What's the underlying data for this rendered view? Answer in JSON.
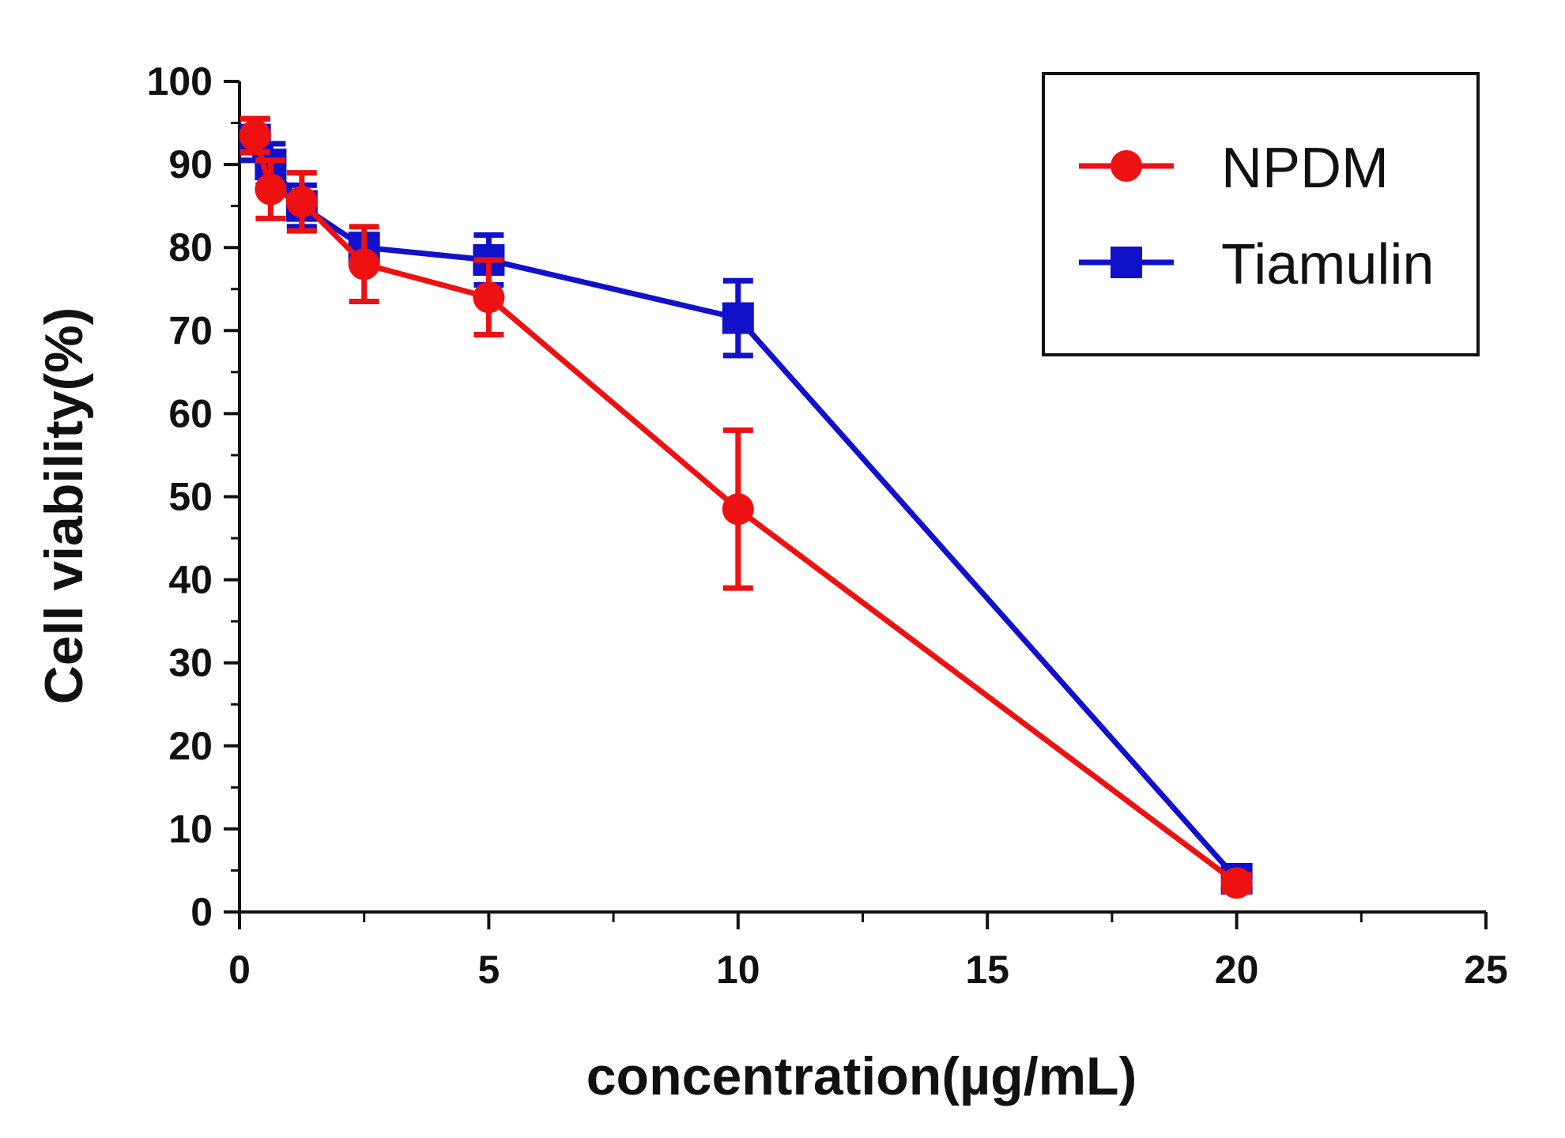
{
  "chart_data": {
    "type": "line",
    "title": "",
    "xlabel": "concentration(µg/mL)",
    "ylabel": "Cell viability(%)",
    "xlim": [
      0,
      25
    ],
    "ylim": [
      0,
      100
    ],
    "xticks": [
      0,
      5,
      10,
      15,
      20,
      25
    ],
    "xtick_labels": [
      "0",
      "5",
      "10",
      "15",
      "20",
      "25"
    ],
    "yticks": [
      0,
      10,
      20,
      30,
      40,
      50,
      60,
      70,
      80,
      90,
      100
    ],
    "ytick_labels": [
      "0",
      "10",
      "20",
      "30",
      "40",
      "50",
      "60",
      "70",
      "80",
      "90",
      "100"
    ],
    "grid": false,
    "legend_position": "top-right",
    "series": [
      {
        "name": "NPDM",
        "color": "#ee1111",
        "marker": "circle",
        "x": [
          0.3125,
          0.625,
          1.25,
          2.5,
          5,
          10,
          20
        ],
        "y": [
          93.5,
          87,
          85.5,
          78,
          74,
          48.5,
          3.5
        ],
        "err": [
          2,
          3.5,
          3.5,
          4.5,
          4.5,
          9.5,
          1
        ]
      },
      {
        "name": "Tiamulin",
        "color": "#1111cc",
        "marker": "square",
        "x": [
          0.3125,
          0.625,
          1.25,
          2.5,
          5,
          10,
          20
        ],
        "y": [
          93,
          90,
          85,
          80,
          78.5,
          71.5,
          4
        ],
        "err": [
          2.5,
          2.5,
          2.5,
          1.5,
          3,
          4.5,
          1
        ]
      }
    ]
  }
}
